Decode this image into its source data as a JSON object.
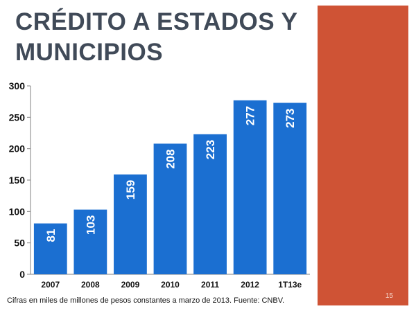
{
  "slide": {
    "title_line1": "CRÉDITO A ESTADOS Y",
    "title_line2": "MUNICIPIOS",
    "caption": "Cifras en miles de millones de pesos constantes a marzo de 2013. Fuente: CNBV.",
    "page_number": "15"
  },
  "colors": {
    "bar": "#1b6fd1",
    "accent_panel": "#cf5335",
    "title": "#404a58"
  },
  "chart_data": {
    "type": "bar",
    "categories": [
      "2007",
      "2008",
      "2009",
      "2010",
      "2011",
      "2012",
      "1T13e"
    ],
    "values": [
      81,
      103,
      159,
      208,
      223,
      277,
      273
    ],
    "data_labels": [
      "81",
      "103",
      "159",
      "208",
      "223",
      "277",
      "273"
    ],
    "y_ticks": [
      "0",
      "50",
      "100",
      "150",
      "200",
      "250",
      "300"
    ],
    "ylim": [
      0,
      300
    ],
    "title": "",
    "xlabel": "",
    "ylabel": "",
    "grid": false,
    "legend": "none"
  }
}
